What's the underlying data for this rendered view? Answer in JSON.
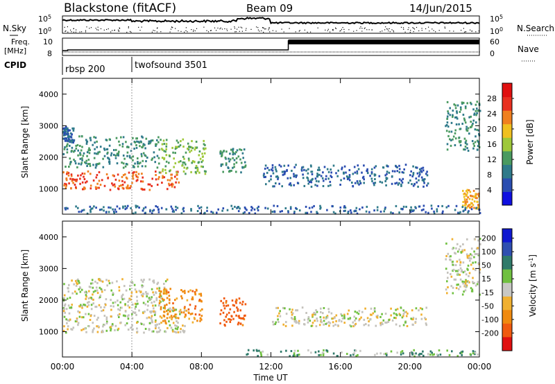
{
  "header": {
    "station": "Blackstone (fitACF)",
    "beam": "Beam 09",
    "date": "14/Jun/2015"
  },
  "summary_panels": {
    "nsky_label": "N.Sky",
    "nsearch_label": "N.Search",
    "nsky_ticks": [
      "10^5",
      "10^0"
    ],
    "nsky_ticks_right": [
      "10^5",
      "10^0"
    ],
    "freq_label_1": "Freq.",
    "freq_label_2": "[MHz]",
    "freq_ticks": [
      "10",
      "8"
    ],
    "nave_label": "Nave",
    "nave_ticks": [
      "60",
      "0"
    ],
    "cpid_label": "CPID",
    "cpid_segments": [
      {
        "label": "rbsp 200",
        "start_hour": 0
      },
      {
        "label": "twofsound 3501",
        "start_hour": 4
      }
    ]
  },
  "x_axis": {
    "label": "Time UT",
    "tick_labels": [
      "00:00",
      "04:00",
      "08:00",
      "12:00",
      "16:00",
      "20:00",
      "00:00"
    ],
    "tick_hours": [
      0,
      4,
      8,
      12,
      16,
      20,
      24
    ],
    "range_hours": [
      0,
      24
    ]
  },
  "colors": {
    "power_scale": [
      "#1010e0",
      "#2a4db0",
      "#2f7a8a",
      "#4a9a60",
      "#9ec83a",
      "#f0c020",
      "#f08020",
      "#e83020",
      "#e01010"
    ],
    "velocity_scale": [
      "#1018d0",
      "#2f4fb0",
      "#2f7a6a",
      "#70c040",
      "#c8c8c4",
      "#f0b030",
      "#f08a10",
      "#f05a10",
      "#e01010"
    ],
    "ground_scatter": "#c4c2bc"
  },
  "chart_data": [
    {
      "type": "heatmap",
      "panel": "power",
      "ylabel": "Slant Range [km]",
      "xlabel": "",
      "xlim_hours": [
        0,
        24
      ],
      "ylim": [
        200,
        4500
      ],
      "y_ticks": [
        1000,
        2000,
        3000,
        4000
      ],
      "colorbar": {
        "label": "Power [dB]",
        "ticks": [
          4,
          8,
          12,
          16,
          20,
          24,
          28
        ],
        "range": [
          0,
          32
        ]
      },
      "features": [
        {
          "t_start": 0.0,
          "t_end": 6.8,
          "range_start": 1000,
          "range_end": 1600,
          "value_db": 28
        },
        {
          "t_start": 0.0,
          "t_end": 5.5,
          "range_start": 1700,
          "range_end": 2700,
          "value_db": 12
        },
        {
          "t_start": 0.0,
          "t_end": 0.6,
          "range_start": 2500,
          "range_end": 3000,
          "value_db": 8
        },
        {
          "t_start": 5.5,
          "t_end": 8.2,
          "range_start": 1500,
          "range_end": 2600,
          "value_db": 16
        },
        {
          "t_start": 9.0,
          "t_end": 10.5,
          "range_start": 1500,
          "range_end": 2300,
          "value_db": 12
        },
        {
          "t_start": 11.5,
          "t_end": 21.0,
          "range_start": 1100,
          "range_end": 1800,
          "value_db": 8
        },
        {
          "t_start": 22.0,
          "t_end": 24.0,
          "range_start": 2200,
          "range_end": 3800,
          "value_db": 12
        },
        {
          "t_start": 23.0,
          "t_end": 24.0,
          "range_start": 400,
          "range_end": 1000,
          "value_db": 24
        },
        {
          "t_start": 0.0,
          "t_end": 24.0,
          "range_start": 250,
          "range_end": 500,
          "value_db": 8
        }
      ]
    },
    {
      "type": "heatmap",
      "panel": "velocity",
      "ylabel": "Slant Range [km]",
      "xlabel": "Time UT",
      "xlim_hours": [
        0,
        24
      ],
      "ylim": [
        200,
        4500
      ],
      "y_ticks": [
        1000,
        2000,
        3000,
        4000
      ],
      "colorbar": {
        "label": "Velocity [m s^-1]",
        "ticks": [
          200,
          100,
          50,
          15,
          -15,
          -50,
          -100,
          -200
        ],
        "range": [
          -250,
          250
        ]
      },
      "features": [
        {
          "t_start": 0.0,
          "t_end": 7.0,
          "range_start": 1000,
          "range_end": 1800,
          "value_ms": 0
        },
        {
          "t_start": 0.0,
          "t_end": 6.0,
          "range_start": 1800,
          "range_end": 2700,
          "value_ms": 0
        },
        {
          "t_start": 5.5,
          "t_end": 8.0,
          "range_start": 1300,
          "range_end": 2400,
          "value_ms": -50
        },
        {
          "t_start": 9.0,
          "t_end": 10.5,
          "range_start": 1200,
          "range_end": 2100,
          "value_ms": -100
        },
        {
          "t_start": 12.0,
          "t_end": 21.0,
          "range_start": 1200,
          "range_end": 1800,
          "value_ms": 0
        },
        {
          "t_start": 22.0,
          "t_end": 24.0,
          "range_start": 2200,
          "range_end": 4000,
          "value_ms": 0
        },
        {
          "t_start": 10.5,
          "t_end": 24.0,
          "range_start": 250,
          "range_end": 450,
          "value_ms": 30
        }
      ]
    }
  ]
}
